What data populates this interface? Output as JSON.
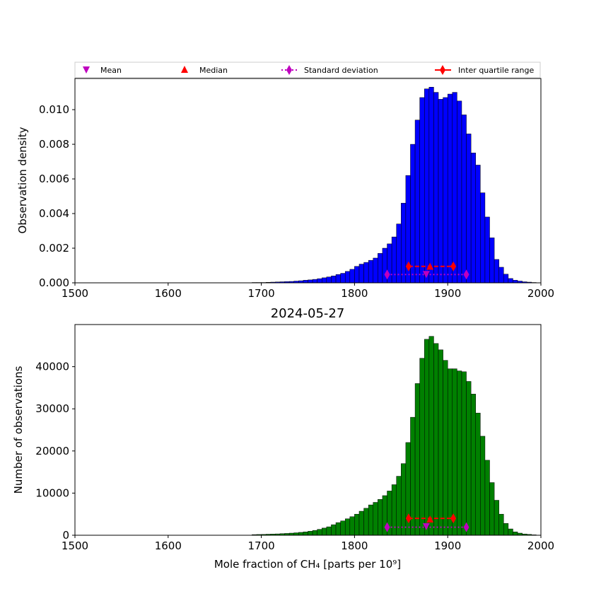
{
  "title": "2024-05-27",
  "colors": {
    "density_bars": "#0000ff",
    "count_bars": "#008000",
    "bar_edge": "#000000",
    "mean_marker": "#bf00bf",
    "median_marker": "#ff0000",
    "std_marker": "#bf00bf",
    "iqr_marker": "#ff0000"
  },
  "legend": {
    "placement": "above top panel, single row",
    "mean": "Mean",
    "median": "Median",
    "std": "Standard deviation",
    "iqr": "Inter quartile range"
  },
  "statistics": {
    "mean": 1877,
    "median": 1881,
    "std_range": [
      1835,
      1920
    ],
    "iqr_range": [
      1858,
      1906
    ]
  },
  "chart_data": [
    {
      "type": "bar",
      "panel": "top",
      "ylabel": "Observation density",
      "xlabel": "",
      "xlim": [
        1500,
        2000
      ],
      "ylim": [
        0,
        0.0118
      ],
      "xticks": [
        "1500",
        "1600",
        "1700",
        "1800",
        "1900",
        "2000"
      ],
      "yticks": [
        "0.000",
        "0.002",
        "0.004",
        "0.006",
        "0.008",
        "0.010"
      ],
      "bin_width": 5,
      "bin_starts": [
        1675,
        1680,
        1685,
        1690,
        1695,
        1700,
        1705,
        1710,
        1715,
        1720,
        1725,
        1730,
        1735,
        1740,
        1745,
        1750,
        1755,
        1760,
        1765,
        1770,
        1775,
        1780,
        1785,
        1790,
        1795,
        1800,
        1805,
        1810,
        1815,
        1820,
        1825,
        1830,
        1835,
        1840,
        1845,
        1850,
        1855,
        1860,
        1865,
        1870,
        1875,
        1880,
        1885,
        1890,
        1895,
        1900,
        1905,
        1910,
        1915,
        1920,
        1925,
        1930,
        1935,
        1940,
        1945,
        1950,
        1955,
        1960,
        1965,
        1970,
        1975,
        1980,
        1985,
        1990,
        1995
      ],
      "values": [
        1e-05,
        1e-05,
        1e-05,
        2e-05,
        2e-05,
        2e-05,
        3e-05,
        4e-05,
        5e-05,
        6e-05,
        7e-05,
        8e-05,
        0.0001,
        0.00012,
        0.00015,
        0.00017,
        0.0002,
        0.00024,
        0.00029,
        0.00034,
        0.0004,
        0.00048,
        0.00055,
        0.00066,
        0.00078,
        0.00095,
        0.00108,
        0.00118,
        0.0013,
        0.00143,
        0.0017,
        0.002,
        0.00225,
        0.00265,
        0.0034,
        0.0046,
        0.0062,
        0.008,
        0.0094,
        0.0107,
        0.0112,
        0.0113,
        0.011,
        0.0106,
        0.0107,
        0.0109,
        0.011,
        0.0105,
        0.0097,
        0.0086,
        0.0075,
        0.0068,
        0.0052,
        0.0038,
        0.0026,
        0.00135,
        0.0009,
        0.0005,
        0.00025,
        0.00015,
        0.0001,
        6e-05,
        4e-05,
        2e-05,
        1e-05
      ]
    },
    {
      "type": "bar",
      "panel": "bottom",
      "ylabel": "Number of observations",
      "xlabel": "Mole fraction of CH₄ [parts per 10⁹]",
      "xlim": [
        1500,
        2000
      ],
      "ylim": [
        0,
        50000
      ],
      "xticks": [
        "1500",
        "1600",
        "1700",
        "1800",
        "1900",
        "2000"
      ],
      "yticks": [
        "0",
        "10000",
        "20000",
        "30000",
        "40000"
      ],
      "bin_width": 5,
      "bin_starts": [
        1690,
        1695,
        1700,
        1705,
        1710,
        1715,
        1720,
        1725,
        1730,
        1735,
        1740,
        1745,
        1750,
        1755,
        1760,
        1765,
        1770,
        1775,
        1780,
        1785,
        1790,
        1795,
        1800,
        1805,
        1810,
        1815,
        1820,
        1825,
        1830,
        1835,
        1840,
        1845,
        1850,
        1855,
        1860,
        1865,
        1870,
        1875,
        1880,
        1885,
        1890,
        1895,
        1900,
        1905,
        1910,
        1915,
        1920,
        1925,
        1930,
        1935,
        1940,
        1945,
        1950,
        1955,
        1960,
        1965,
        1970,
        1975,
        1980,
        1985,
        1990
      ],
      "values": [
        150,
        180,
        200,
        250,
        280,
        320,
        380,
        430,
        500,
        580,
        680,
        800,
        950,
        1150,
        1400,
        1700,
        2000,
        2500,
        3000,
        3400,
        3900,
        4400,
        5000,
        5700,
        6400,
        7200,
        7800,
        8500,
        9400,
        10500,
        12000,
        14000,
        17000,
        22000,
        28000,
        36000,
        42000,
        46500,
        47200,
        45500,
        44000,
        41500,
        39500,
        39500,
        39000,
        38800,
        36500,
        33500,
        29000,
        23500,
        17800,
        12500,
        8300,
        5000,
        2800,
        1500,
        800,
        500,
        300,
        200,
        100
      ]
    }
  ]
}
